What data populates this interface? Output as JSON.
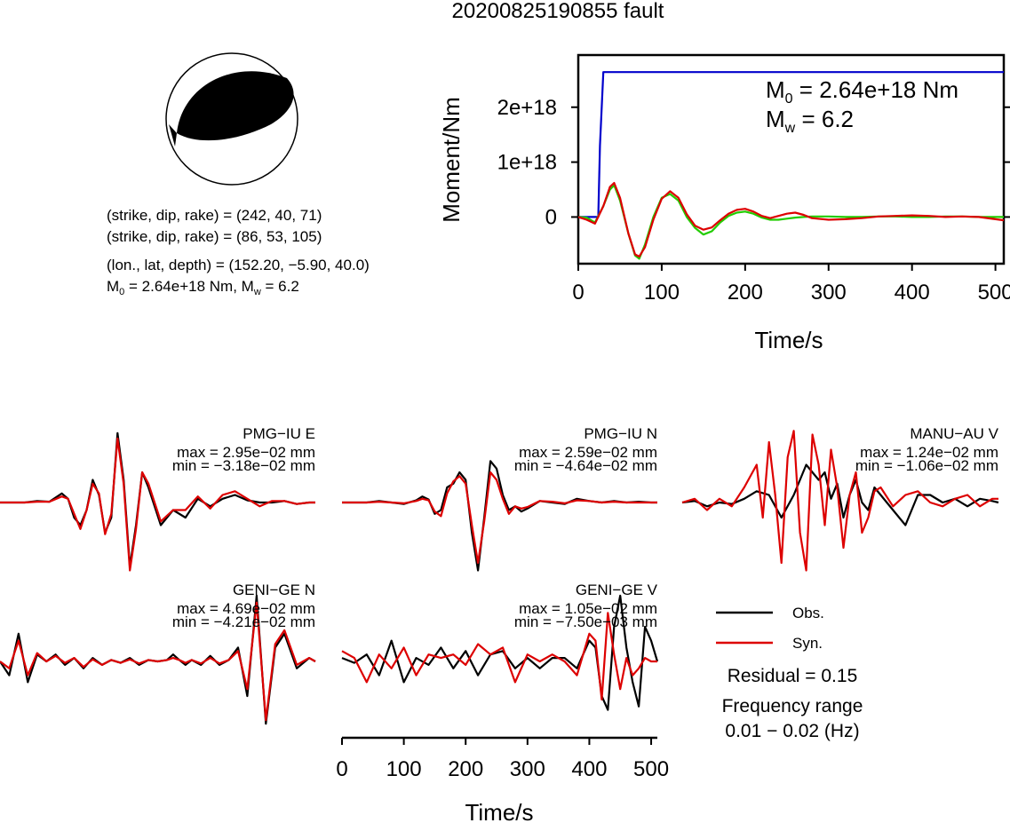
{
  "page": {
    "title": "20200825190855 fault"
  },
  "mechanism": {
    "planes": [
      {
        "label": "(strike, dip, rake) = (242, 40, 71)",
        "strike": 242,
        "dip": 40,
        "rake": 71
      },
      {
        "label": "(strike, dip, rake) = (86, 53, 105)",
        "strike": 86,
        "dip": 53,
        "rake": 105
      }
    ],
    "location_label": "(lon., lat, depth) = (152.20, −5.90, 40.0)",
    "moment_base": "M",
    "moment_sub": "0",
    "moment_rest": " = 2.64e+18 Nm, M",
    "mw_sub": "w",
    "mw_rest": " = 6.2",
    "colors": {
      "compression": "#000000",
      "dilatation": "#ffffff"
    }
  },
  "moment_panel": {
    "m0_base": "M",
    "m0_sub": "0",
    "m0_rest": " = 2.64e+18 Nm",
    "mw_base": "M",
    "mw_sub": "w",
    "mw_rest": " = 6.2"
  },
  "waveform_axis": {
    "xlabel": "Time/s",
    "ticks": [
      "0",
      "100",
      "200",
      "300",
      "400",
      "500"
    ]
  },
  "legend": {
    "obs_label": "Obs.",
    "syn_label": "Syn.",
    "residual": "Residual = 0.15",
    "freq_title": "Frequency range",
    "freq_value": "0.01 − 0.02 (Hz)"
  },
  "chart_data": [
    {
      "type": "line",
      "xlabel": "Time/s",
      "ylabel": "Moment/Nm",
      "xlim": [
        0,
        510
      ],
      "ylim": [
        -8.5e+17,
        2.95e+18
      ],
      "xticks": [
        0,
        100,
        200,
        300,
        400,
        500
      ],
      "xtick_labels": [
        "0",
        "100",
        "200",
        "300",
        "400",
        "500"
      ],
      "yticks": [
        0,
        1e+18,
        2e+18
      ],
      "ytick_labels": [
        "0",
        "1e+18",
        "2e+18"
      ],
      "series": [
        {
          "color": "#0000cc",
          "x": [
            0,
            24,
            26,
            30,
            510
          ],
          "y": [
            0,
            0,
            1.3e+18,
            2.64e+18,
            2.64e+18
          ]
        },
        {
          "color": "#22cc00",
          "x": [
            0,
            10,
            20,
            30,
            38,
            43,
            50,
            60,
            68,
            73,
            80,
            90,
            100,
            110,
            120,
            130,
            140,
            150,
            160,
            170,
            180,
            190,
            200,
            210,
            220,
            230,
            240,
            250,
            260,
            270,
            280,
            300,
            320,
            340,
            360,
            380,
            400,
            420,
            440,
            460,
            480,
            500,
            510
          ],
          "y": [
            0,
            -1e+16,
            -1e+17,
            2e+17,
            5e+17,
            5.8e+17,
            3e+17,
            -3e+17,
            -7e+17,
            -7.6e+17,
            -5e+17,
            0,
            3.5e+17,
            4.2e+17,
            3e+17,
            0,
            -2e+17,
            -3.2e+17,
            -2.6e+17,
            -1e+17,
            2e+16,
            8e+16,
            1e+17,
            6e+16,
            -1e+16,
            -5e+16,
            -5e+16,
            -3e+16,
            -1e+16,
            0,
            1e+16,
            1e+16,
            0,
            0,
            1e+16,
            1e+16,
            0,
            0,
            1e+16,
            1e+16,
            0,
            0,
            0
          ]
        },
        {
          "color": "#dd0000",
          "x": [
            0,
            10,
            20,
            30,
            38,
            43,
            50,
            60,
            68,
            73,
            80,
            90,
            100,
            110,
            120,
            130,
            140,
            150,
            160,
            170,
            180,
            190,
            200,
            210,
            220,
            230,
            240,
            250,
            260,
            270,
            280,
            300,
            320,
            340,
            360,
            380,
            400,
            420,
            440,
            460,
            480,
            500,
            510
          ],
          "y": [
            0,
            -5e+16,
            -1.2e+17,
            2e+17,
            5.5e+17,
            6.2e+17,
            3.5e+17,
            -3e+17,
            -6.8e+17,
            -7.2e+17,
            -5.5e+17,
            -5e+16,
            3.3e+17,
            4.7e+17,
            3.5e+17,
            5e+16,
            -1.6e+17,
            -2.3e+17,
            -1.9e+17,
            -6e+16,
            6e+16,
            1.3e+17,
            1.5e+17,
            1e+17,
            2e+16,
            -2e+16,
            2e+16,
            6e+16,
            8e+16,
            4e+16,
            -2e+16,
            -5e+16,
            -4e+16,
            -2e+16,
            1e+16,
            2e+16,
            3e+16,
            2e+16,
            0,
            1e+16,
            0,
            -4e+16,
            -6e+16
          ]
        }
      ]
    },
    {
      "type": "line",
      "title": "PMG−IU E",
      "max_label": "max = 2.95e−02 mm",
      "min_label": "min = −3.18e−02 mm",
      "xlim": [
        0,
        510
      ],
      "series": [
        {
          "name": "Obs.",
          "color": "#000000",
          "x": [
            0,
            20,
            40,
            60,
            80,
            100,
            110,
            120,
            130,
            140,
            150,
            160,
            170,
            180,
            190,
            200,
            210,
            220,
            230,
            240,
            260,
            280,
            300,
            320,
            340,
            360,
            380,
            400,
            420,
            440,
            460,
            480,
            500,
            510
          ],
          "y": [
            0,
            0,
            0,
            0.02,
            0.01,
            0.12,
            0.05,
            -0.2,
            -0.3,
            -0.1,
            0.3,
            0.1,
            -0.4,
            -0.2,
            0.92,
            0.3,
            -0.85,
            -0.3,
            0.4,
            0.2,
            -0.3,
            -0.1,
            -0.2,
            0.05,
            -0.05,
            0.05,
            0.1,
            0.03,
            0,
            0,
            0.02,
            -0.02,
            0,
            0
          ]
        },
        {
          "name": "Syn.",
          "color": "#dd0000",
          "x": [
            0,
            20,
            40,
            60,
            80,
            100,
            110,
            120,
            130,
            140,
            150,
            160,
            170,
            180,
            190,
            200,
            210,
            220,
            230,
            240,
            260,
            280,
            300,
            320,
            340,
            360,
            380,
            400,
            420,
            440,
            460,
            480,
            500,
            510
          ],
          "y": [
            0,
            0,
            0,
            0.01,
            0.01,
            0.08,
            0.05,
            -0.15,
            -0.35,
            -0.1,
            0.25,
            0.12,
            -0.42,
            -0.15,
            0.85,
            0.25,
            -0.9,
            -0.35,
            0.4,
            0.25,
            -0.25,
            -0.1,
            -0.1,
            0.08,
            -0.08,
            0.1,
            0.15,
            0.05,
            -0.05,
            0.02,
            0.02,
            -0.02,
            0,
            0
          ]
        }
      ]
    },
    {
      "type": "line",
      "title": "PMG−IU N",
      "max_label": "max = 2.59e−02 mm",
      "min_label": "min = −4.64e−02 mm",
      "xlim": [
        0,
        510
      ],
      "series": [
        {
          "name": "Obs.",
          "color": "#000000",
          "x": [
            0,
            20,
            40,
            60,
            80,
            100,
            120,
            130,
            140,
            150,
            160,
            170,
            180,
            190,
            200,
            210,
            220,
            230,
            240,
            250,
            260,
            270,
            280,
            290,
            300,
            320,
            340,
            360,
            380,
            400,
            420,
            440,
            460,
            480,
            500,
            510
          ],
          "y": [
            0,
            0,
            0,
            0.02,
            0,
            -0.02,
            0.03,
            0.08,
            0.04,
            -0.15,
            -0.1,
            0.2,
            0.25,
            0.4,
            0.3,
            -0.4,
            -0.9,
            -0.2,
            0.55,
            0.45,
            0.1,
            -0.1,
            -0.05,
            -0.12,
            -0.08,
            0.02,
            0,
            -0.02,
            0.05,
            0.02,
            0,
            0.02,
            0,
            0.01,
            0,
            0
          ]
        },
        {
          "name": "Syn.",
          "color": "#dd0000",
          "x": [
            0,
            20,
            40,
            60,
            80,
            100,
            120,
            130,
            140,
            150,
            160,
            170,
            180,
            190,
            200,
            210,
            220,
            230,
            240,
            250,
            260,
            270,
            280,
            290,
            300,
            320,
            340,
            360,
            380,
            400,
            420,
            440,
            460,
            480,
            500,
            510
          ],
          "y": [
            0,
            0,
            0,
            0.01,
            0,
            -0.01,
            0.02,
            0.05,
            0.03,
            -0.12,
            -0.18,
            0.12,
            0.28,
            0.35,
            0.25,
            -0.3,
            -0.8,
            -0.25,
            0.4,
            0.3,
            0.05,
            -0.15,
            -0.05,
            -0.08,
            -0.06,
            0.02,
            0.01,
            -0.01,
            0.03,
            0.02,
            0,
            0.01,
            0,
            0,
            0,
            0
          ]
        }
      ]
    },
    {
      "type": "line",
      "title": "MANU−AU V",
      "max_label": "max = 1.24e−02 mm",
      "min_label": "min = −1.06e−02 mm",
      "xlim": [
        0,
        510
      ],
      "series": [
        {
          "name": "Obs.",
          "color": "#000000",
          "x": [
            0,
            20,
            40,
            60,
            80,
            100,
            120,
            140,
            160,
            180,
            200,
            220,
            230,
            240,
            250,
            260,
            270,
            280,
            290,
            300,
            310,
            320,
            340,
            360,
            380,
            400,
            420,
            440,
            460,
            480,
            500,
            510
          ],
          "y": [
            0,
            0.02,
            -0.05,
            0,
            -0.02,
            0.05,
            0.15,
            0.1,
            -0.2,
            0.1,
            0.5,
            0.3,
            0.4,
            0.05,
            0.25,
            -0.2,
            0.1,
            0.3,
            0,
            -0.1,
            0.2,
            0.1,
            -0.1,
            -0.3,
            0.1,
            0.1,
            0,
            0.05,
            -0.05,
            0.05,
            0.02,
            0
          ]
        },
        {
          "name": "Syn.",
          "color": "#dd0000",
          "x": [
            0,
            20,
            40,
            60,
            80,
            100,
            120,
            130,
            140,
            150,
            160,
            170,
            180,
            190,
            200,
            210,
            220,
            230,
            240,
            250,
            260,
            270,
            280,
            290,
            300,
            310,
            320,
            340,
            360,
            380,
            400,
            420,
            440,
            460,
            480,
            500,
            510
          ],
          "y": [
            0,
            0.05,
            -0.1,
            0.05,
            -0.05,
            0.2,
            0.5,
            -0.2,
            0.8,
            0.1,
            -0.8,
            0.6,
            0.95,
            -0.4,
            -0.9,
            0.9,
            0.5,
            -0.3,
            0.7,
            0.2,
            -0.6,
            0.1,
            0.4,
            -0.4,
            -0.2,
            0.15,
            0.2,
            -0.05,
            0.1,
            0.15,
            0,
            -0.05,
            0.05,
            0.1,
            -0.05,
            0.05,
            0.05
          ]
        }
      ]
    },
    {
      "type": "line",
      "title": "GENI−GE N",
      "max_label": "max = 4.69e−02 mm",
      "min_label": "min = −4.21e−02 mm",
      "xlim": [
        0,
        510
      ],
      "series": [
        {
          "name": "Obs.",
          "color": "#000000",
          "x": [
            0,
            15,
            30,
            45,
            60,
            75,
            90,
            105,
            120,
            135,
            150,
            165,
            180,
            195,
            210,
            225,
            240,
            255,
            270,
            280,
            290,
            300,
            310,
            325,
            340,
            355,
            370,
            385,
            400,
            415,
            430,
            445,
            460,
            480,
            500,
            510
          ],
          "y": [
            0,
            -0.2,
            0.4,
            -0.3,
            0.1,
            0,
            0.1,
            -0.05,
            0.05,
            -0.1,
            0.05,
            -0.05,
            0.02,
            -0.02,
            0.05,
            -0.05,
            0.02,
            0,
            0.02,
            0.1,
            0.02,
            -0.05,
            0.02,
            -0.05,
            0.08,
            -0.05,
            0.02,
            0.2,
            -0.5,
            0.95,
            -0.9,
            0.2,
            0.4,
            -0.1,
            0.05,
            0
          ]
        },
        {
          "name": "Syn.",
          "color": "#dd0000",
          "x": [
            0,
            15,
            30,
            45,
            60,
            75,
            90,
            105,
            120,
            135,
            150,
            165,
            180,
            195,
            210,
            225,
            240,
            255,
            270,
            280,
            290,
            300,
            310,
            325,
            340,
            355,
            370,
            385,
            400,
            415,
            430,
            445,
            460,
            480,
            500,
            510
          ],
          "y": [
            0,
            -0.1,
            0.3,
            -0.2,
            0.12,
            0,
            0.08,
            -0.02,
            0.05,
            -0.08,
            0.03,
            -0.05,
            0.02,
            -0.02,
            0.03,
            -0.03,
            0.02,
            0,
            0.02,
            0.05,
            0.02,
            -0.02,
            0.02,
            -0.03,
            0.05,
            -0.03,
            0.02,
            0.15,
            -0.4,
            0.85,
            -0.85,
            0.25,
            0.45,
            -0.05,
            0.05,
            0
          ]
        }
      ]
    },
    {
      "type": "line",
      "title": "GENI−GE V",
      "max_label": "max = 1.05e−02 mm",
      "min_label": "min = −7.50e−03 mm",
      "xlim": [
        0,
        510
      ],
      "series": [
        {
          "name": "Obs.",
          "color": "#000000",
          "x": [
            0,
            20,
            40,
            60,
            80,
            100,
            120,
            140,
            160,
            180,
            200,
            220,
            240,
            260,
            280,
            300,
            320,
            340,
            360,
            380,
            400,
            410,
            420,
            430,
            440,
            450,
            460,
            470,
            480,
            490,
            500,
            510
          ],
          "y": [
            0.05,
            -0.02,
            0.1,
            -0.2,
            0.3,
            -0.3,
            0.05,
            -0.05,
            0.2,
            -0.1,
            0.15,
            -0.2,
            0.1,
            0.15,
            -0.1,
            0.05,
            -0.1,
            0.05,
            0.05,
            -0.1,
            0.3,
            0.2,
            -0.5,
            -0.7,
            0.5,
            0.95,
            0.2,
            -0.3,
            -0.65,
            0.5,
            0.3,
            0
          ]
        },
        {
          "name": "Syn.",
          "color": "#dd0000",
          "x": [
            0,
            20,
            40,
            60,
            80,
            100,
            120,
            140,
            160,
            180,
            200,
            220,
            240,
            260,
            280,
            300,
            320,
            340,
            360,
            380,
            400,
            410,
            420,
            430,
            440,
            450,
            460,
            470,
            480,
            490,
            500,
            510
          ],
          "y": [
            0.15,
            0.05,
            -0.3,
            0.1,
            -0.1,
            0.2,
            -0.2,
            0.1,
            0.05,
            0.1,
            -0.05,
            0.25,
            0.1,
            0.2,
            -0.3,
            0.1,
            0,
            0.1,
            0,
            -0.2,
            0.4,
            0.3,
            -0.55,
            0.7,
            0.1,
            -0.4,
            0.05,
            -0.2,
            -0.1,
            0.05,
            0,
            0
          ]
        }
      ]
    }
  ]
}
